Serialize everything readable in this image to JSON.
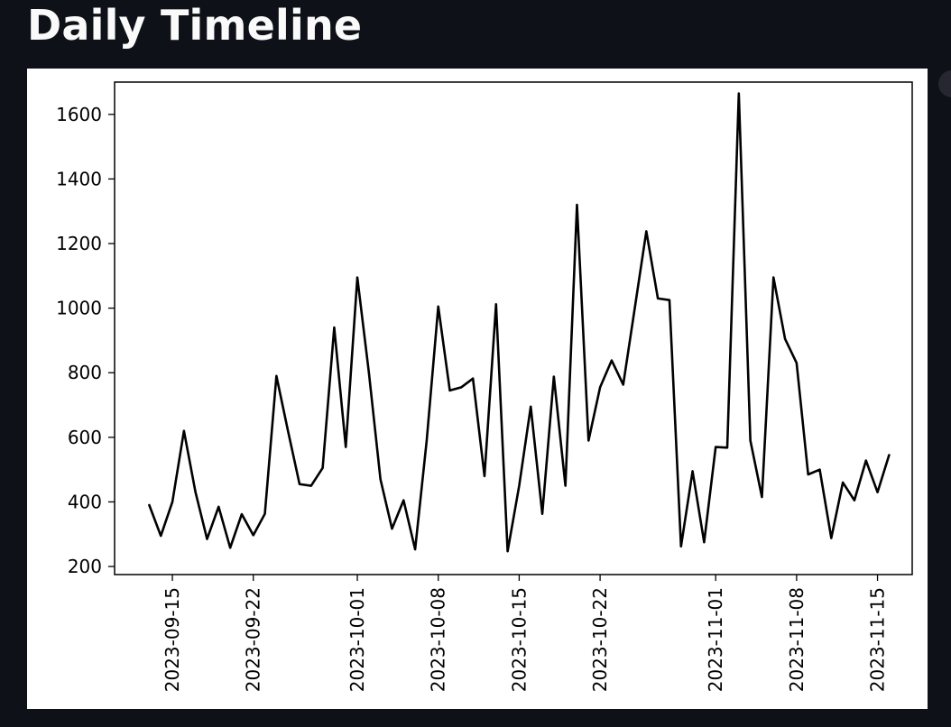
{
  "header": {
    "title": "Daily Timeline"
  },
  "chart_data": {
    "type": "line",
    "title": "",
    "xlabel": "",
    "ylabel": "",
    "x_type": "date",
    "grid": false,
    "legend": "none",
    "line_color": "#000000",
    "ylim": [
      175,
      1700
    ],
    "xlim": [
      "2023-09-10",
      "2023-11-18"
    ],
    "yticks": [
      200,
      400,
      600,
      800,
      1000,
      1200,
      1400,
      1600
    ],
    "xticks": [
      "2023-09-15",
      "2023-09-22",
      "2023-10-01",
      "2023-10-08",
      "2023-10-15",
      "2023-10-22",
      "2023-11-01",
      "2023-11-08",
      "2023-11-15"
    ],
    "series": [
      {
        "x": [
          "2023-09-13",
          "2023-09-14",
          "2023-09-15",
          "2023-09-16",
          "2023-09-17",
          "2023-09-18",
          "2023-09-19",
          "2023-09-20",
          "2023-09-21",
          "2023-09-22",
          "2023-09-23",
          "2023-09-24",
          "2023-09-25",
          "2023-09-26",
          "2023-09-27",
          "2023-09-28",
          "2023-09-29",
          "2023-09-30",
          "2023-10-01",
          "2023-10-02",
          "2023-10-03",
          "2023-10-04",
          "2023-10-05",
          "2023-10-06",
          "2023-10-07",
          "2023-10-08",
          "2023-10-09",
          "2023-10-10",
          "2023-10-11",
          "2023-10-12",
          "2023-10-13",
          "2023-10-14",
          "2023-10-15",
          "2023-10-16",
          "2023-10-17",
          "2023-10-18",
          "2023-10-19",
          "2023-10-20",
          "2023-10-21",
          "2023-10-22",
          "2023-10-23",
          "2023-10-24",
          "2023-10-25",
          "2023-10-26",
          "2023-10-27",
          "2023-10-28",
          "2023-10-29",
          "2023-10-30",
          "2023-10-31",
          "2023-11-01",
          "2023-11-02",
          "2023-11-03",
          "2023-11-04",
          "2023-11-05",
          "2023-11-06",
          "2023-11-07",
          "2023-11-08",
          "2023-11-09",
          "2023-11-10",
          "2023-11-11",
          "2023-11-12",
          "2023-11-13",
          "2023-11-14",
          "2023-11-15",
          "2023-11-16"
        ],
        "values": [
          390,
          295,
          400,
          620,
          430,
          285,
          385,
          258,
          362,
          297,
          363,
          790,
          620,
          455,
          450,
          505,
          940,
          570,
          1095,
          800,
          470,
          317,
          405,
          253,
          590,
          1005,
          745,
          755,
          782,
          480,
          1012,
          247,
          450,
          695,
          363,
          788,
          450,
          1320,
          590,
          755,
          838,
          763,
          1000,
          1238,
          1030,
          1025,
          262,
          495,
          275,
          570,
          568,
          1665,
          590,
          415,
          1095,
          905,
          830,
          485,
          500,
          288,
          460,
          405,
          528,
          430,
          545
        ]
      }
    ]
  }
}
